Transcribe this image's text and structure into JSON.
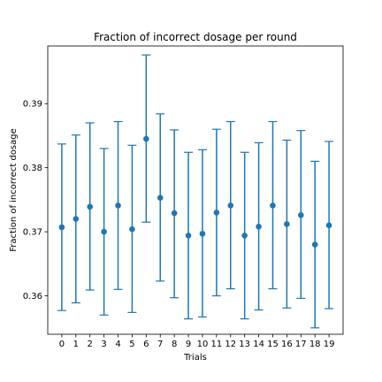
{
  "chart_data": {
    "type": "scatter",
    "title": "Fraction of incorrect dosage per round",
    "xlabel": "Trials",
    "ylabel": "Fraction of incorrect dosage",
    "grid": false,
    "legend": "none",
    "xlim": [
      -1,
      20
    ],
    "ylim": [
      0.354,
      0.399
    ],
    "x_ticks": [
      0,
      1,
      2,
      3,
      4,
      5,
      6,
      7,
      8,
      9,
      10,
      11,
      12,
      13,
      14,
      15,
      16,
      17,
      18,
      19
    ],
    "y_ticks": [
      0.36,
      0.37,
      0.38,
      0.39
    ],
    "y_tick_labels": [
      "0.36",
      "0.37",
      "0.38",
      "0.39"
    ],
    "color": "#1f77b4",
    "series": [
      {
        "x": [
          0,
          1,
          2,
          3,
          4,
          5,
          6,
          7,
          8,
          9,
          10,
          11,
          12,
          13,
          14,
          15,
          16,
          17,
          18,
          19
        ],
        "values": [
          0.3707,
          0.372,
          0.3739,
          0.37,
          0.3741,
          0.3704,
          0.3845,
          0.3753,
          0.3729,
          0.3694,
          0.3697,
          0.373,
          0.3741,
          0.3694,
          0.3708,
          0.3741,
          0.3712,
          0.3726,
          0.368,
          0.371
        ],
        "error_lower": [
          0.3577,
          0.3589,
          0.3609,
          0.357,
          0.361,
          0.3574,
          0.3715,
          0.3623,
          0.3597,
          0.3564,
          0.3567,
          0.36,
          0.3611,
          0.3564,
          0.3578,
          0.3611,
          0.3581,
          0.3596,
          0.355,
          0.358
        ],
        "error_upper": [
          0.3837,
          0.3851,
          0.387,
          0.383,
          0.3872,
          0.3835,
          0.3976,
          0.3884,
          0.3859,
          0.3824,
          0.3828,
          0.386,
          0.3872,
          0.3824,
          0.3839,
          0.3872,
          0.3843,
          0.3858,
          0.381,
          0.3841
        ]
      }
    ]
  }
}
